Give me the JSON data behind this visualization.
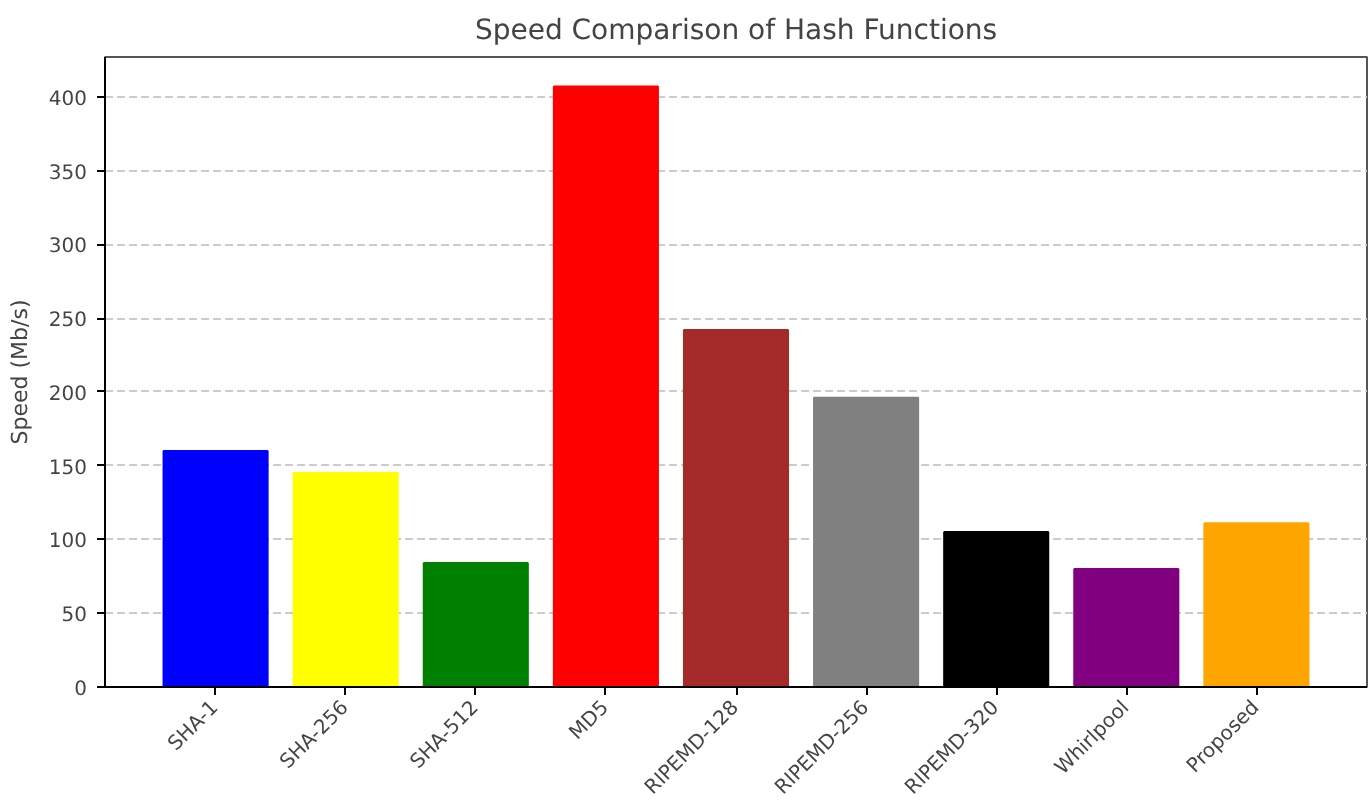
{
  "chart_data": {
    "type": "bar",
    "title": "Speed Comparison of Hash Functions",
    "ylabel": "Speed (Mb/s)",
    "categories": [
      "SHA-1",
      "SHA-256",
      "SHA-512",
      "MD5",
      "RIPEMD-128",
      "RIPEMD-256",
      "RIPEMD-320",
      "Whirlpool",
      "Proposed"
    ],
    "values": [
      160,
      145,
      84,
      407,
      242,
      196,
      105,
      80,
      111
    ],
    "colors": [
      "#0000ff",
      "#ffff00",
      "#008000",
      "#ff0000",
      "#a52a2a",
      "#808080",
      "#000000",
      "#800080",
      "#ffa500"
    ],
    "ylim": [
      0,
      427
    ],
    "yticks": [
      0,
      50,
      100,
      150,
      200,
      250,
      300,
      350,
      400
    ],
    "grid": "y"
  }
}
